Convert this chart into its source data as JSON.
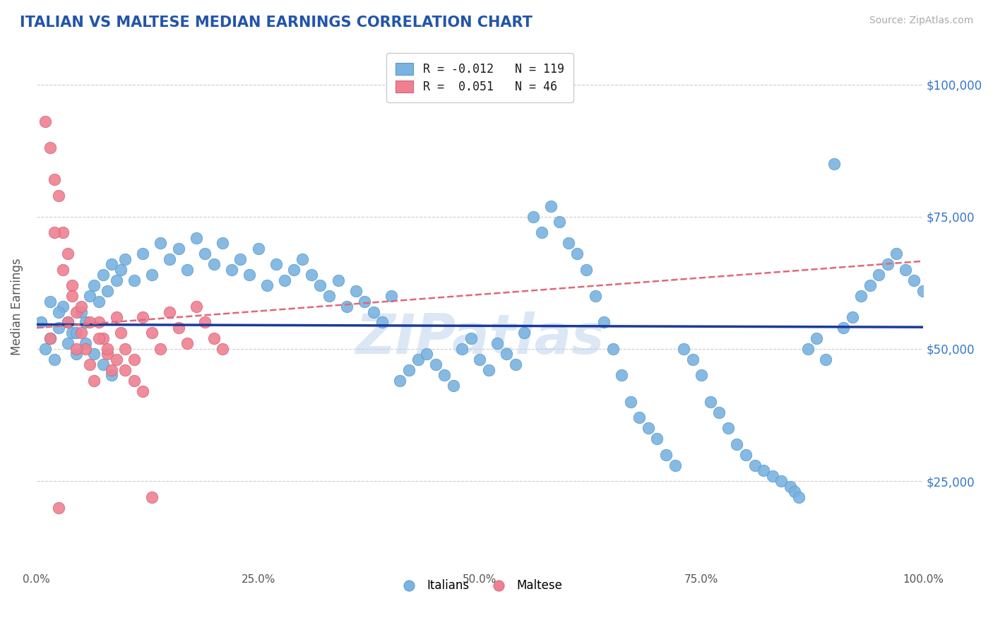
{
  "title": "ITALIAN VS MALTESE MEDIAN EARNINGS CORRELATION CHART",
  "source_text": "Source: ZipAtlas.com",
  "ylabel": "Median Earnings",
  "watermark": "ZIPatlas",
  "italian_R": -0.012,
  "italian_N": 119,
  "maltese_R": 0.051,
  "maltese_N": 46,
  "italian_color": "#7ab3e0",
  "maltese_color": "#f08090",
  "italian_line_color": "#1a3a9c",
  "maltese_line_color": "#e06878",
  "xmin": 0.0,
  "xmax": 1.0,
  "ymin": 8000,
  "ymax": 108000,
  "yticks": [
    25000,
    50000,
    75000,
    100000
  ],
  "ytick_labels": [
    "$25,000",
    "$50,000",
    "$75,000",
    "$100,000"
  ],
  "title_color": "#2255aa",
  "grid_color": "#cccccc",
  "title_fontsize": 15,
  "italian_points_x": [
    0.005,
    0.01,
    0.015,
    0.02,
    0.025,
    0.03,
    0.035,
    0.04,
    0.045,
    0.05,
    0.055,
    0.06,
    0.065,
    0.07,
    0.075,
    0.08,
    0.085,
    0.09,
    0.095,
    0.1,
    0.11,
    0.12,
    0.13,
    0.14,
    0.15,
    0.16,
    0.17,
    0.18,
    0.19,
    0.2,
    0.21,
    0.22,
    0.23,
    0.24,
    0.25,
    0.26,
    0.27,
    0.28,
    0.29,
    0.3,
    0.31,
    0.32,
    0.33,
    0.34,
    0.35,
    0.36,
    0.37,
    0.38,
    0.39,
    0.4,
    0.41,
    0.42,
    0.43,
    0.44,
    0.45,
    0.46,
    0.47,
    0.48,
    0.49,
    0.5,
    0.51,
    0.52,
    0.53,
    0.54,
    0.55,
    0.56,
    0.57,
    0.58,
    0.59,
    0.6,
    0.61,
    0.62,
    0.63,
    0.64,
    0.65,
    0.66,
    0.67,
    0.68,
    0.69,
    0.7,
    0.71,
    0.72,
    0.73,
    0.74,
    0.75,
    0.76,
    0.77,
    0.78,
    0.79,
    0.8,
    0.81,
    0.82,
    0.83,
    0.84,
    0.85,
    0.855,
    0.86,
    0.87,
    0.88,
    0.89,
    0.9,
    0.91,
    0.92,
    0.93,
    0.94,
    0.95,
    0.96,
    0.97,
    0.98,
    0.99,
    1.0,
    0.015,
    0.025,
    0.035,
    0.045,
    0.055,
    0.065,
    0.075,
    0.085
  ],
  "italian_points_y": [
    55000,
    50000,
    52000,
    48000,
    54000,
    58000,
    51000,
    53000,
    49000,
    57000,
    55000,
    60000,
    62000,
    59000,
    64000,
    61000,
    66000,
    63000,
    65000,
    67000,
    63000,
    68000,
    64000,
    70000,
    67000,
    69000,
    65000,
    71000,
    68000,
    66000,
    70000,
    65000,
    67000,
    64000,
    69000,
    62000,
    66000,
    63000,
    65000,
    67000,
    64000,
    62000,
    60000,
    63000,
    58000,
    61000,
    59000,
    57000,
    55000,
    60000,
    44000,
    46000,
    48000,
    49000,
    47000,
    45000,
    43000,
    50000,
    52000,
    48000,
    46000,
    51000,
    49000,
    47000,
    53000,
    75000,
    72000,
    77000,
    74000,
    70000,
    68000,
    65000,
    60000,
    55000,
    50000,
    45000,
    40000,
    37000,
    35000,
    33000,
    30000,
    28000,
    50000,
    48000,
    45000,
    40000,
    38000,
    35000,
    32000,
    30000,
    28000,
    27000,
    26000,
    25000,
    24000,
    23000,
    22000,
    50000,
    52000,
    48000,
    85000,
    54000,
    56000,
    60000,
    62000,
    64000,
    66000,
    68000,
    65000,
    63000,
    61000,
    59000,
    57000,
    55000,
    53000,
    51000,
    49000,
    47000,
    45000
  ],
  "maltese_points_x": [
    0.01,
    0.015,
    0.02,
    0.025,
    0.03,
    0.035,
    0.04,
    0.045,
    0.05,
    0.055,
    0.06,
    0.065,
    0.07,
    0.075,
    0.08,
    0.085,
    0.09,
    0.095,
    0.1,
    0.11,
    0.12,
    0.13,
    0.14,
    0.15,
    0.16,
    0.17,
    0.18,
    0.19,
    0.2,
    0.21,
    0.02,
    0.03,
    0.04,
    0.05,
    0.06,
    0.07,
    0.08,
    0.09,
    0.1,
    0.11,
    0.12,
    0.13,
    0.025,
    0.035,
    0.015,
    0.045
  ],
  "maltese_points_y": [
    93000,
    88000,
    82000,
    79000,
    72000,
    68000,
    62000,
    57000,
    53000,
    50000,
    47000,
    44000,
    55000,
    52000,
    49000,
    46000,
    56000,
    53000,
    50000,
    48000,
    56000,
    53000,
    50000,
    57000,
    54000,
    51000,
    58000,
    55000,
    52000,
    50000,
    72000,
    65000,
    60000,
    58000,
    55000,
    52000,
    50000,
    48000,
    46000,
    44000,
    42000,
    22000,
    20000,
    55000,
    52000,
    50000
  ]
}
